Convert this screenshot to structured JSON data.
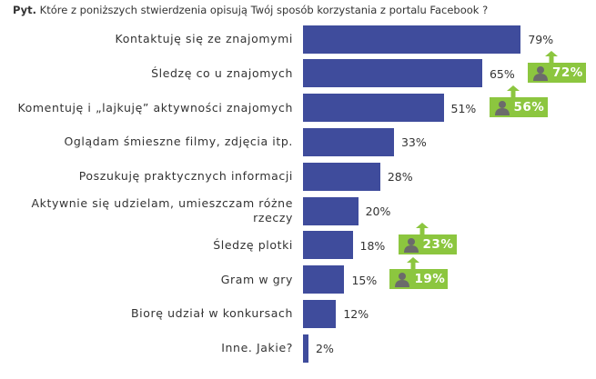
{
  "chart_data": {
    "type": "bar",
    "orientation": "horizontal",
    "title_prefix": "Pyt.",
    "title": "Które z poniższych stwierdzenia opisują Twój sposób korzystania  z portalu Facebook ?",
    "categories": [
      "Kontaktuję się ze znajomymi",
      "Śledzę co u znajomych",
      "Komentuję  i „lajkuję” aktywności znajomych",
      "Oglądam śmieszne filmy, zdjęcia itp.",
      "Poszukuję praktycznych informacji",
      "Aktywnie się udzielam, umieszczam różne rzeczy",
      "Śledzę plotki",
      "Gram w gry",
      "Biorę udział w konkursach",
      "Inne. Jakie?"
    ],
    "values": [
      79,
      65,
      51,
      33,
      28,
      20,
      18,
      15,
      12,
      2
    ],
    "value_labels": [
      "79%",
      "65%",
      "51%",
      "33%",
      "28%",
      "20%",
      "18%",
      "15%",
      "12%",
      "2%"
    ],
    "color": "#3f4c9c",
    "xlim": [
      0,
      100
    ],
    "badges": {
      "values": [
        null,
        72,
        56,
        null,
        null,
        null,
        23,
        19,
        null,
        null
      ],
      "value_labels": [
        null,
        "72%",
        "56%",
        null,
        null,
        null,
        "23%",
        "19%",
        null,
        null
      ],
      "color": "#8cc63f"
    }
  }
}
